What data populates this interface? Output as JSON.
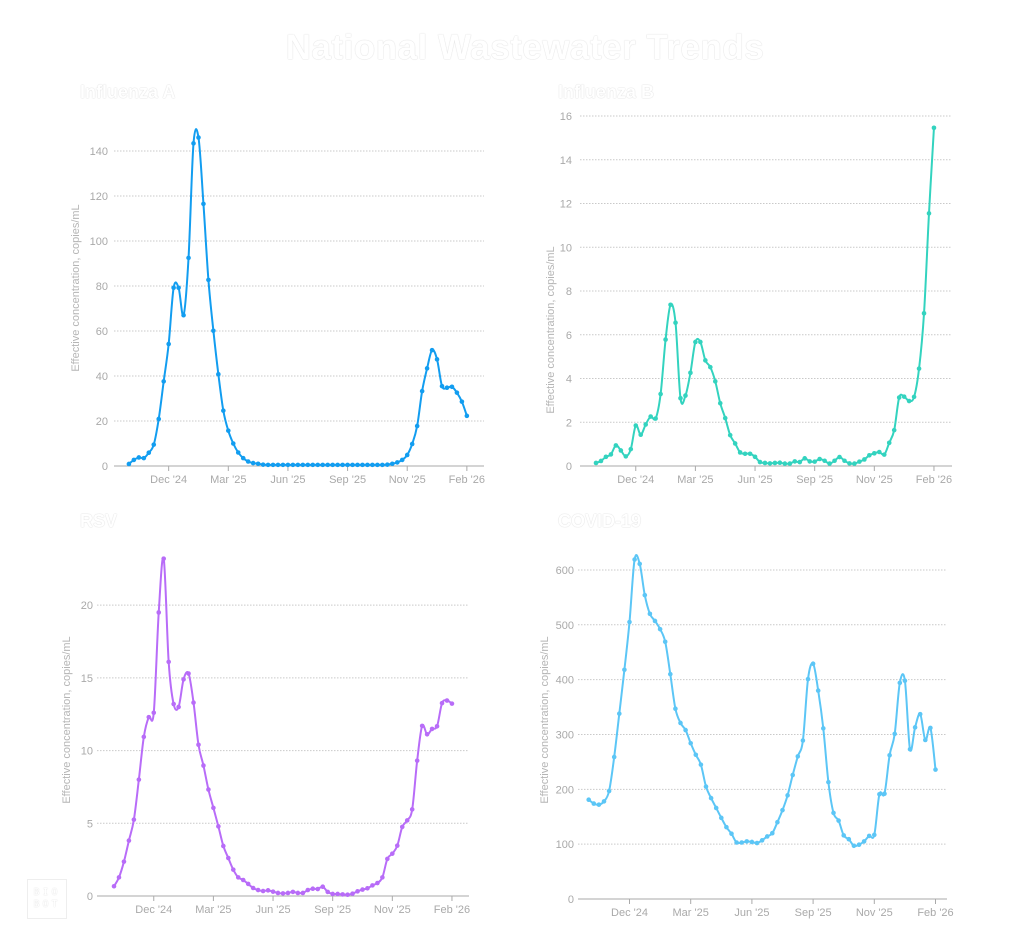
{
  "title": "National Wastewater Trends",
  "logo_text": "BIOBOT",
  "chart_data": [
    {
      "type": "line",
      "title": "Influenza A",
      "ylabel": "Effective concentration, copies/mL",
      "color": "#129df0",
      "ylim": [
        0,
        160
      ],
      "yticks": [
        0,
        20,
        40,
        60,
        80,
        100,
        120,
        140
      ],
      "xtick_weeks": [
        8,
        20,
        32,
        44,
        56,
        68
      ],
      "xtick_labels": [
        "Dec '24",
        "Mar '25",
        "Jun '25",
        "Sep '25",
        "Nov '25",
        "Feb '26"
      ],
      "values": [
        0.9,
        2.7,
        3.8,
        3.5,
        5.9,
        9.5,
        20.9,
        37.6,
        54.2,
        79.2,
        79.2,
        67,
        92.5,
        143.4,
        146,
        116.5,
        82.7,
        60.1,
        40.8,
        24.6,
        15.7,
        10,
        6,
        3.5,
        2,
        1.3,
        1.0,
        0.6,
        0.5,
        0.5,
        0.5,
        0.5,
        0.5,
        0.5,
        0.5,
        0.5,
        0.5,
        0.5,
        0.5,
        0.5,
        0.5,
        0.5,
        0.5,
        0.5,
        0.5,
        0.5,
        0.5,
        0.5,
        0.5,
        0.5,
        0.5,
        0.5,
        0.6,
        1.0,
        1.6,
        2.7,
        4.9,
        9.8,
        17.8,
        33.3,
        43.4,
        51.5,
        47.4,
        35.5,
        34.8,
        35.2,
        32.6,
        28.6,
        22.3
      ]
    },
    {
      "type": "line",
      "title": "Influenza B",
      "ylabel": "Effective concentration, copies/mL",
      "color": "#33d3bf",
      "ylim": [
        0,
        16
      ],
      "yticks": [
        0,
        2,
        4,
        6,
        8,
        10,
        12,
        14,
        16
      ],
      "xtick_weeks": [
        8,
        20,
        32,
        44,
        56,
        68
      ],
      "xtick_labels": [
        "Dec '24",
        "Mar '25",
        "Jun '25",
        "Sep '25",
        "Nov '25",
        "Feb '26"
      ],
      "values": [
        0.14,
        0.23,
        0.42,
        0.53,
        0.94,
        0.71,
        0.44,
        0.77,
        1.85,
        1.43,
        1.9,
        2.26,
        2.17,
        3.29,
        5.78,
        7.37,
        6.55,
        3.1,
        3.22,
        4.26,
        5.67,
        5.67,
        4.83,
        4.52,
        3.87,
        2.87,
        2.19,
        1.41,
        1.03,
        0.62,
        0.56,
        0.56,
        0.42,
        0.18,
        0.14,
        0.12,
        0.14,
        0.15,
        0.11,
        0.11,
        0.21,
        0.18,
        0.35,
        0.21,
        0.2,
        0.32,
        0.24,
        0.11,
        0.24,
        0.41,
        0.24,
        0.12,
        0.11,
        0.2,
        0.3,
        0.49,
        0.58,
        0.64,
        0.52,
        1.06,
        1.64,
        3.13,
        3.17,
        2.97,
        3.16,
        4.45,
        6.98,
        11.55,
        15.46
      ]
    },
    {
      "type": "line",
      "title": "RSV",
      "ylabel": "Effective concentration, copies/mL",
      "color": "#b86cf8",
      "ylim": [
        0,
        24
      ],
      "yticks": [
        0,
        5,
        10,
        15,
        20
      ],
      "xtick_weeks": [
        8,
        20,
        32,
        44,
        56,
        68
      ],
      "xtick_labels": [
        "Dec '24",
        "Mar '25",
        "Jun '25",
        "Sep '25",
        "Nov '25",
        "Feb '26"
      ],
      "values": [
        0.67,
        1.28,
        2.36,
        3.81,
        5.25,
        8.0,
        10.94,
        12.3,
        12.6,
        19.5,
        23.2,
        16.1,
        13.2,
        13.0,
        14.9,
        15.3,
        13.3,
        10.4,
        8.97,
        7.32,
        6.06,
        4.79,
        3.44,
        2.61,
        1.81,
        1.28,
        1.1,
        0.83,
        0.55,
        0.41,
        0.34,
        0.39,
        0.3,
        0.21,
        0.18,
        0.21,
        0.28,
        0.21,
        0.21,
        0.41,
        0.5,
        0.48,
        0.64,
        0.28,
        0.14,
        0.14,
        0.11,
        0.09,
        0.16,
        0.32,
        0.44,
        0.53,
        0.73,
        0.89,
        1.28,
        2.55,
        2.91,
        3.46,
        4.75,
        5.2,
        5.96,
        9.31,
        11.7,
        11.12,
        11.49,
        11.67,
        13.26,
        13.44,
        13.23
      ]
    },
    {
      "type": "line",
      "title": "COVID-19",
      "ylabel": "Effective concentration, copies/mL",
      "color": "#5cc6f6",
      "ylim": [
        0,
        640
      ],
      "yticks": [
        0,
        100,
        200,
        300,
        400,
        500,
        600
      ],
      "xtick_weeks": [
        8,
        20,
        32,
        44,
        56,
        68
      ],
      "xtick_labels": [
        "Dec '24",
        "Mar '25",
        "Jun '25",
        "Sep '25",
        "Nov '25",
        "Feb '26"
      ],
      "values": [
        181,
        174,
        172,
        178,
        197,
        259,
        338,
        418,
        505,
        619,
        611,
        554,
        520,
        507,
        492,
        469,
        410,
        347,
        321,
        308,
        284,
        263,
        245,
        205,
        184,
        166,
        148,
        131,
        119,
        103,
        103,
        105,
        104,
        102,
        107,
        114,
        120,
        140,
        162,
        189,
        226,
        260,
        289,
        401,
        429,
        380,
        311,
        213,
        157,
        143,
        116,
        109,
        97,
        99,
        105,
        115,
        117,
        191,
        192,
        262,
        301,
        394,
        398,
        273,
        313,
        337,
        290,
        312,
        236
      ]
    }
  ]
}
